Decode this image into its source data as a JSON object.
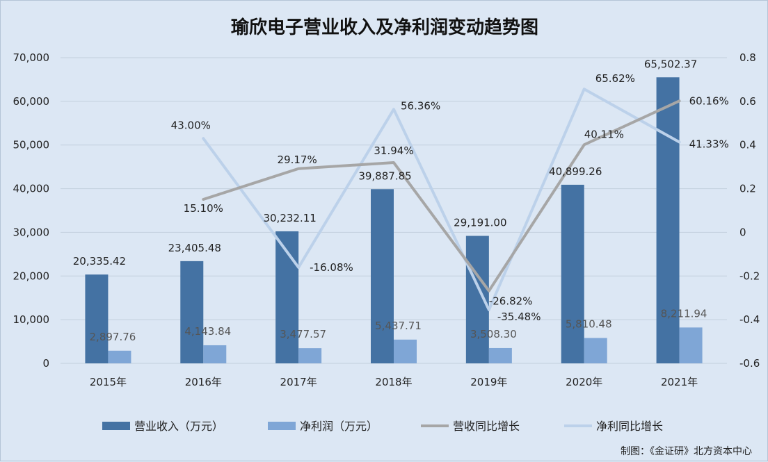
{
  "chart_data": {
    "type": "bar",
    "title": "瑜欣电子营业收入及净利润变动趋势图",
    "categories": [
      "2015年",
      "2016年",
      "2017年",
      "2018年",
      "2019年",
      "2020年",
      "2021年"
    ],
    "series": [
      {
        "name": "营业收入（万元）",
        "type": "bar",
        "axis": "left",
        "color": "#4472a3",
        "values": [
          20335.42,
          23405.48,
          30232.11,
          39887.85,
          29191.0,
          40899.26,
          65502.37
        ],
        "labels": [
          "20,335.42",
          "23,405.48",
          "30,232.11",
          "39,887.85",
          "29,191.00",
          "40,899.26",
          "65,502.37"
        ]
      },
      {
        "name": "净利润（万元）",
        "type": "bar",
        "axis": "left",
        "color": "#7fa6d6",
        "values": [
          2897.76,
          4143.84,
          3477.57,
          5437.71,
          3508.3,
          5810.48,
          8211.94
        ],
        "labels": [
          "2,897.76",
          "4,143.84",
          "3,477.57",
          "5,437.71",
          "3,508.30",
          "5,810.48",
          "8,211.94"
        ]
      },
      {
        "name": "营收同比增长",
        "type": "line",
        "axis": "right",
        "color": "#a6a6a6",
        "values": [
          null,
          0.151,
          0.2917,
          0.3194,
          -0.2682,
          0.4011,
          0.6016
        ],
        "labels": [
          "",
          "15.10%",
          "29.17%",
          "31.94%",
          "-26.82%",
          "40.11%",
          "60.16%"
        ]
      },
      {
        "name": "净利同比增长",
        "type": "line",
        "axis": "right",
        "color": "#bcd1ea",
        "values": [
          null,
          0.43,
          -0.1608,
          0.5636,
          -0.3548,
          0.6562,
          0.4133
        ],
        "labels": [
          "",
          "43.00%",
          "-16.08%",
          "56.36%",
          "-35.48%",
          "65.62%",
          "41.33%"
        ]
      }
    ],
    "y_left": {
      "min": 0,
      "max": 70000,
      "ticks": [
        0,
        10000,
        20000,
        30000,
        40000,
        50000,
        60000,
        70000
      ],
      "tick_labels": [
        "0",
        "10,000",
        "20,000",
        "30,000",
        "40,000",
        "50,000",
        "60,000",
        "70,000"
      ]
    },
    "y_right": {
      "min": -0.6,
      "max": 0.8,
      "ticks": [
        -0.6,
        -0.4,
        -0.2,
        0,
        0.2,
        0.4,
        0.6,
        0.8
      ],
      "tick_labels": [
        "-0.6",
        "-0.4",
        "-0.2",
        "0",
        "0.2",
        "0.4",
        "0.6",
        "0.8"
      ]
    },
    "grid": true,
    "legend": "bottom"
  },
  "credit": "制图：《金证研》北方资本中心"
}
